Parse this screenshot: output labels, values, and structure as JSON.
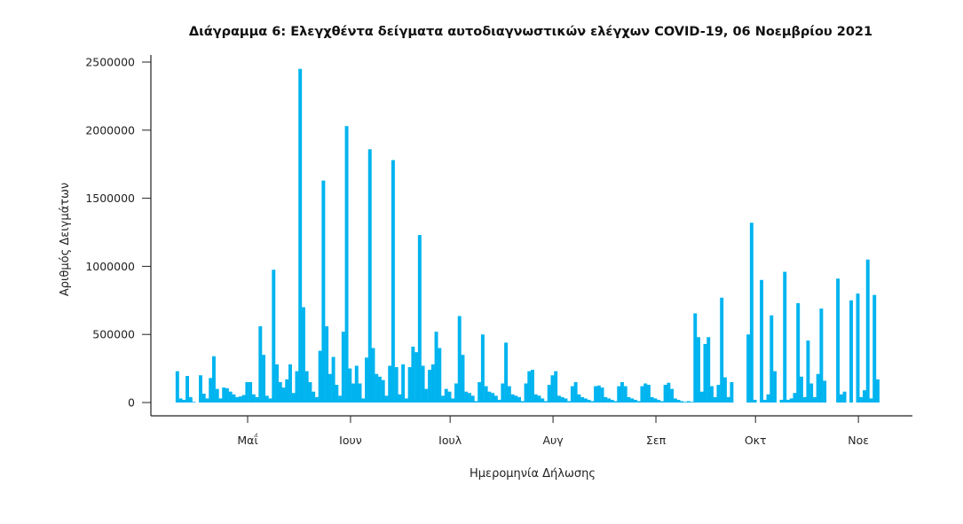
{
  "chart_data": {
    "type": "bar",
    "title": "Διάγραμμα 6: Ελεγχθέντα δείγματα αυτοδιαγνωστικών ελέγχων COVID-19, 06 Νοεμβρίου 2021",
    "xlabel": "Ημερομηνία Δήλωσης",
    "ylabel": "Αριθμός Δειγμάτων",
    "ylim": [
      0,
      2500000
    ],
    "yticks": [
      "0",
      "500000",
      "1000000",
      "1500000",
      "2000000",
      "2500000"
    ],
    "ytick_values": [
      0,
      500000,
      1000000,
      1500000,
      2000000,
      2500000
    ],
    "xticks": [
      "Μαΐ",
      "Ιουν",
      "Ιουλ",
      "Αυγ",
      "Σεπ",
      "Οκτ",
      "Νοε"
    ],
    "xtick_day_index": [
      22,
      53,
      83,
      114,
      145,
      175,
      206
    ],
    "start_date": "2021-04-09",
    "grid": false,
    "bar_color": "#00b4ef",
    "values": [
      230000,
      30000,
      20000,
      195000,
      40000,
      5000,
      0,
      200000,
      65000,
      30000,
      180000,
      340000,
      100000,
      30000,
      110000,
      105000,
      80000,
      60000,
      40000,
      45000,
      55000,
      150000,
      150000,
      60000,
      40000,
      560000,
      350000,
      50000,
      30000,
      975000,
      280000,
      150000,
      110000,
      170000,
      280000,
      70000,
      230000,
      2450000,
      700000,
      230000,
      150000,
      80000,
      40000,
      380000,
      1630000,
      560000,
      210000,
      335000,
      130000,
      50000,
      520000,
      2030000,
      250000,
      140000,
      270000,
      140000,
      30000,
      330000,
      1860000,
      400000,
      210000,
      190000,
      165000,
      50000,
      270000,
      1780000,
      260000,
      60000,
      280000,
      30000,
      260000,
      410000,
      370000,
      1230000,
      270000,
      100000,
      240000,
      280000,
      520000,
      400000,
      50000,
      100000,
      80000,
      30000,
      140000,
      635000,
      350000,
      80000,
      70000,
      50000,
      10000,
      150000,
      500000,
      120000,
      80000,
      70000,
      50000,
      20000,
      140000,
      440000,
      120000,
      60000,
      50000,
      40000,
      10000,
      140000,
      230000,
      240000,
      60000,
      50000,
      30000,
      10000,
      130000,
      200000,
      230000,
      50000,
      40000,
      30000,
      10000,
      120000,
      150000,
      60000,
      40000,
      30000,
      20000,
      10000,
      120000,
      125000,
      110000,
      40000,
      30000,
      20000,
      10000,
      120000,
      150000,
      120000,
      40000,
      30000,
      20000,
      10000,
      120000,
      140000,
      130000,
      40000,
      30000,
      20000,
      10000,
      130000,
      145000,
      100000,
      30000,
      20000,
      10000,
      5000,
      10000,
      5000,
      655000,
      480000,
      80000,
      430000,
      480000,
      120000,
      40000,
      130000,
      770000,
      185000,
      40000,
      150000,
      0,
      0,
      0,
      0,
      500000,
      1320000,
      20000,
      0,
      900000,
      20000,
      60000,
      640000,
      230000,
      0,
      20000,
      960000,
      20000,
      30000,
      70000,
      730000,
      190000,
      40000,
      455000,
      140000,
      40000,
      210000,
      690000,
      160000,
      0,
      0,
      0,
      910000,
      60000,
      80000,
      0,
      750000,
      0,
      800000,
      40000,
      90000,
      1050000,
      30000,
      790000,
      170000
    ]
  }
}
